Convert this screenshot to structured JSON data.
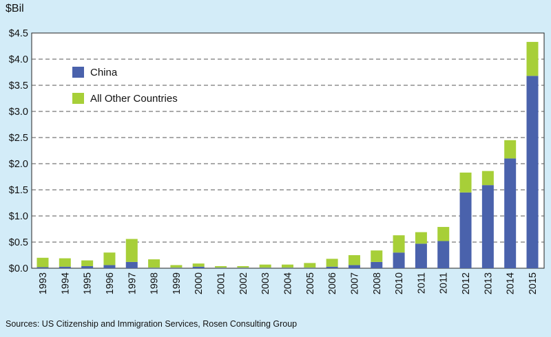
{
  "chart_data": {
    "type": "bar",
    "stacked": true,
    "unit_label": "$Bil",
    "source": "Sources: US Citizenship and Immigration Services, Rosen Consulting Group",
    "categories": [
      "1993",
      "1994",
      "1995",
      "1996",
      "1997",
      "1998",
      "1999",
      "2000",
      "2001",
      "2002",
      "2003",
      "2004",
      "2005",
      "2006",
      "2007",
      "2008",
      "2010",
      "2011",
      "2011",
      "2012",
      "2013",
      "2014",
      "2015"
    ],
    "series": [
      {
        "name": "China",
        "color": "#4a62ac",
        "values": [
          0.02,
          0.03,
          0.04,
          0.06,
          0.12,
          0.01,
          0.01,
          0.03,
          0.01,
          0.01,
          0.01,
          0.01,
          0.01,
          0.03,
          0.06,
          0.12,
          0.3,
          0.47,
          0.52,
          1.45,
          1.59,
          2.1,
          3.68
        ]
      },
      {
        "name": "All Other Countries",
        "color": "#a7cf38",
        "values": [
          0.18,
          0.16,
          0.11,
          0.24,
          0.44,
          0.16,
          0.05,
          0.06,
          0.03,
          0.03,
          0.06,
          0.06,
          0.09,
          0.15,
          0.19,
          0.22,
          0.33,
          0.22,
          0.27,
          0.38,
          0.27,
          0.35,
          0.65
        ]
      }
    ],
    "ylim": [
      0,
      4.5
    ],
    "yticks": [
      0,
      0.5,
      1.0,
      1.5,
      2.0,
      2.5,
      3.0,
      3.5,
      4.0,
      4.5
    ],
    "ytick_labels": [
      "$0.0",
      "$0.5",
      "$1.0",
      "$1.5",
      "$2.0",
      "$2.5",
      "$3.0",
      "$3.5",
      "$4.0",
      "$4.5"
    ],
    "grid": "horizontal-dashed",
    "legend_position": "top-left"
  }
}
